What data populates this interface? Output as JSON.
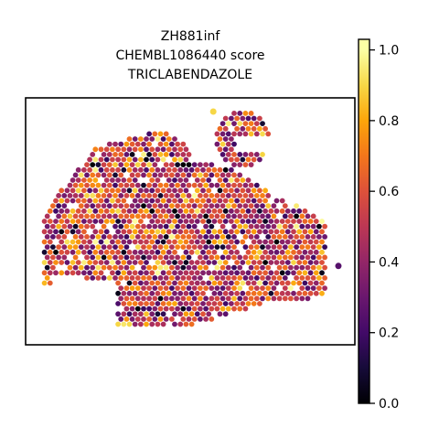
{
  "chart_data": {
    "type": "scatter",
    "title_lines": [
      "ZH881inf",
      "CHEMBL1086440 score",
      "TRICLABENDAZOLE"
    ],
    "xlabel": "",
    "ylabel": "",
    "grid": false,
    "colorbar": {
      "colormap": "inferno",
      "range": [
        0.0,
        1.03
      ],
      "ticks": [
        "0.0",
        "0.2",
        "0.4",
        "0.6",
        "0.8",
        "1.0"
      ],
      "tick_values": [
        0.0,
        0.2,
        0.4,
        0.6,
        0.8,
        1.0
      ]
    },
    "x_range": [
      0,
      100
    ],
    "y_range": [
      0,
      72
    ],
    "tissue_spots_estimated": 2000,
    "score_distribution": {
      "mean": 0.52,
      "min": 0.0,
      "max": 1.0
    },
    "highlighted_points": [
      {
        "x": 57,
        "y": 68,
        "value": 0.9
      },
      {
        "x": 95,
        "y": 23,
        "value": 0.25
      }
    ]
  }
}
